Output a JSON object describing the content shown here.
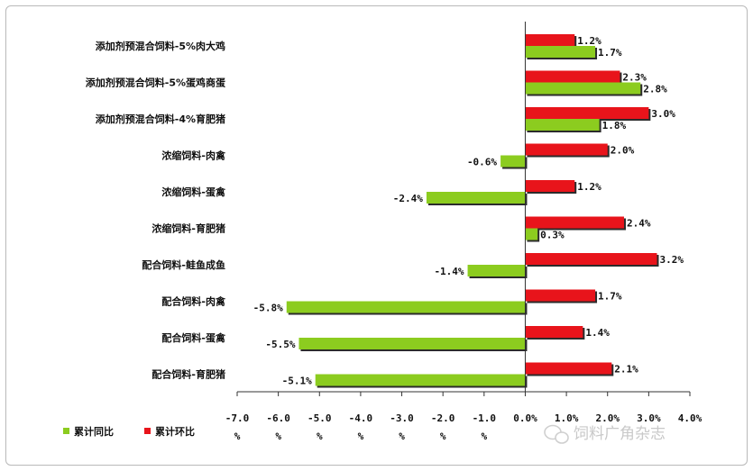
{
  "chart_data": {
    "type": "bar",
    "orientation": "horizontal",
    "categories": [
      "添加剂预混合饲料-5%肉大鸡",
      "添加剂预混合饲料-5%蛋鸡商蛋",
      "添加剂预混合饲料-4%育肥猪",
      "浓缩饲料-肉禽",
      "浓缩饲料-蛋禽",
      "浓缩饲料-育肥猪",
      "配合饲料-鲑鱼成鱼",
      "配合饲料-肉禽",
      "配合饲料-蛋禽",
      "配合饲料-育肥猪"
    ],
    "series": [
      {
        "name": "累计环比",
        "color": "#e8141b",
        "values": [
          1.2,
          2.3,
          3.0,
          2.0,
          1.2,
          2.4,
          3.2,
          1.7,
          1.4,
          2.1
        ],
        "labels": [
          "1.2%",
          "2.3%",
          "3.0%",
          "2.0%",
          "1.2%",
          "2.4%",
          "3.2%",
          "1.7%",
          "1.4%",
          "2.1%"
        ]
      },
      {
        "name": "累计同比",
        "color": "#8ccc1f",
        "values": [
          1.7,
          2.8,
          1.8,
          -0.6,
          -2.4,
          0.3,
          -1.4,
          -5.8,
          -5.5,
          -5.1
        ],
        "labels": [
          "1.7%",
          "2.8%",
          "1.8%",
          "-0.6%",
          "-2.4%",
          "0.3%",
          "-1.4%",
          "-5.8%",
          "-5.5%",
          "-5.1%"
        ]
      }
    ],
    "xlim": [
      -7.0,
      4.0
    ],
    "xticks": [
      -7.0,
      -6.0,
      -5.0,
      -4.0,
      -3.0,
      -2.0,
      -1.0,
      0.0,
      1.0,
      2.0,
      3.0,
      4.0
    ],
    "xtick_main": [
      "-7.0",
      "-6.0",
      "-5.0",
      "-4.0",
      "-3.0",
      "-2.0",
      "-1.0",
      "0.0%",
      "1.0%",
      "2.0%",
      "3.0%",
      "4.0%"
    ],
    "xtick_sub": [
      "%",
      "%",
      "%",
      "%",
      "%",
      "%",
      "%",
      "",
      "",
      "",
      "",
      ""
    ],
    "legend": [
      {
        "name": "累计同比",
        "color": "#8ccc1f"
      },
      {
        "name": "累计环比",
        "color": "#e8141b"
      }
    ],
    "legend_position": "bottom-left",
    "grid": false
  },
  "watermark": {
    "text": "饲料广角杂志",
    "icon": "wechat-icon"
  }
}
